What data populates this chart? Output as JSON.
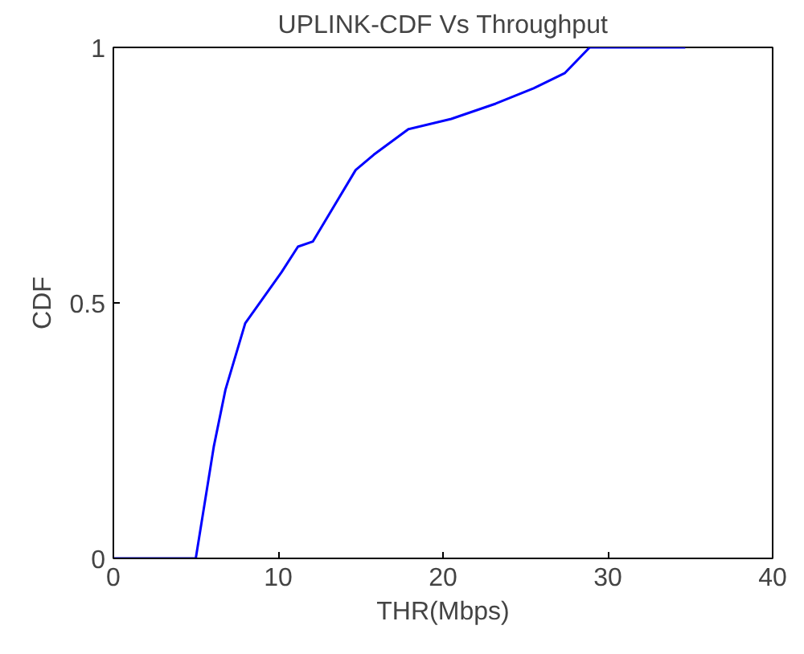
{
  "chart_data": {
    "type": "line",
    "title": "UPLINK-CDF Vs Throughput",
    "xlabel": "THR(Mbps)",
    "ylabel": "CDF",
    "x": [
      0,
      5.0,
      6.1,
      6.8,
      8.0,
      10.2,
      11.2,
      12.1,
      14.7,
      15.8,
      17.9,
      20.5,
      23.2,
      25.5,
      27.4,
      28.9,
      34.7
    ],
    "series": [
      {
        "color": "#0000ff",
        "values": [
          0,
          0,
          0.22,
          0.33,
          0.46,
          0.56,
          0.61,
          0.62,
          0.76,
          0.79,
          0.84,
          0.86,
          0.89,
          0.92,
          0.95,
          1.0,
          1.0
        ]
      }
    ],
    "xlim": [
      0,
      40
    ],
    "ylim": [
      0,
      1
    ],
    "xticks": [
      0,
      10,
      20,
      30,
      40
    ],
    "yticks": [
      0,
      0.5,
      1
    ],
    "grid": false
  }
}
